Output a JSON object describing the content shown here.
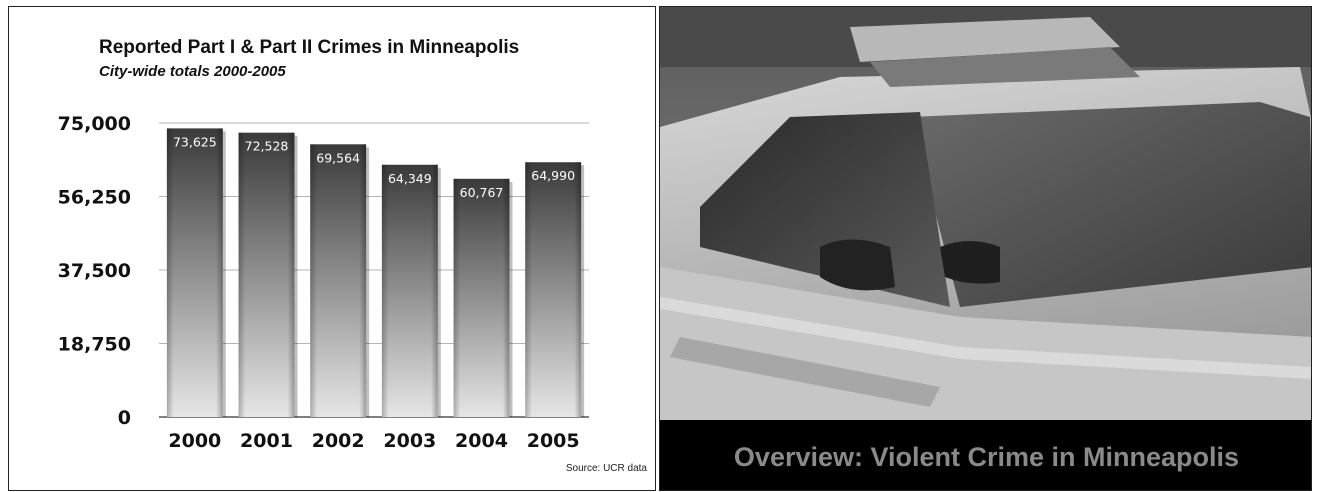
{
  "left_panel": {
    "source": "Source: UCR data"
  },
  "right_panel": {
    "caption": "Overview: Violent Crime in Minneapolis",
    "image_subject": "police car"
  },
  "chart_data": {
    "type": "bar",
    "title": "Reported Part I & Part II Crimes in Minneapolis",
    "subtitle": "City-wide totals 2000-2005",
    "categories": [
      "2000",
      "2001",
      "2002",
      "2003",
      "2004",
      "2005"
    ],
    "values": [
      73625,
      72528,
      69564,
      64349,
      60767,
      64990
    ],
    "data_labels": [
      "73,625",
      "72,528",
      "69,564",
      "64,349",
      "60,767",
      "64,990"
    ],
    "yticks": [
      0,
      18750,
      37500,
      56250,
      75000
    ],
    "ytick_labels": [
      "0",
      "18,750",
      "37,500",
      "56,250",
      "75,000"
    ],
    "ylim": [
      0,
      75000
    ],
    "xlabel": "",
    "ylabel": "",
    "grid": true,
    "bar_color_top": "#3a3a3a",
    "bar_color_bottom": "#e6e6e6"
  }
}
